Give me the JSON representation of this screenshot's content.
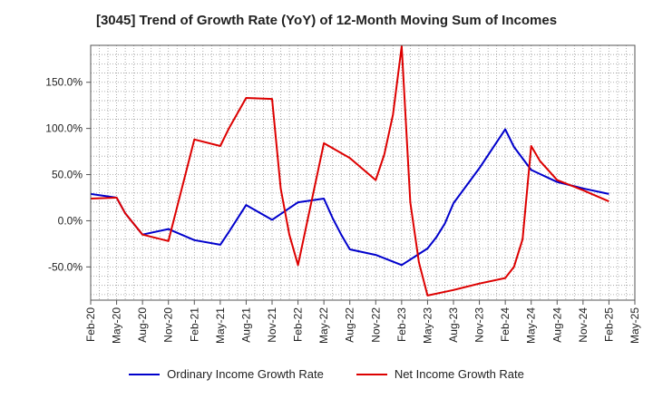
{
  "chart_data": {
    "type": "line",
    "title": "[3045]  Trend of Growth Rate (YoY) of 12-Month Moving Sum of Incomes",
    "xlabel": "",
    "ylabel": "",
    "x_tick_labels": [
      "Feb-20",
      "May-20",
      "Aug-20",
      "Nov-20",
      "Feb-21",
      "May-21",
      "Aug-21",
      "Nov-21",
      "Feb-22",
      "May-22",
      "Aug-22",
      "Nov-22",
      "Feb-23",
      "May-23",
      "Aug-23",
      "Nov-23",
      "Feb-24",
      "May-24",
      "Aug-24",
      "Nov-24",
      "Feb-25",
      "May-25"
    ],
    "y_tick_labels": [
      "-50.0%",
      "0.0%",
      "50.0%",
      "100.0%",
      "150.0%"
    ],
    "y_ticks": [
      -50,
      0,
      50,
      100,
      150
    ],
    "ylim": [
      -86,
      190
    ],
    "x_range_months": [
      "2020-02",
      "2025-05"
    ],
    "grid": true,
    "legend_position": "bottom",
    "series": [
      {
        "name": "Ordinary Income Growth Rate",
        "color": "#0000cc",
        "points": [
          [
            "2020-02",
            29
          ],
          [
            "2020-05",
            25
          ],
          [
            "2020-06",
            8
          ],
          [
            "2020-08",
            -15
          ],
          [
            "2020-11",
            -9
          ],
          [
            "2021-02",
            -21
          ],
          [
            "2021-05",
            -26
          ],
          [
            "2021-06",
            -12
          ],
          [
            "2021-08",
            17
          ],
          [
            "2021-11",
            1
          ],
          [
            "2022-02",
            20
          ],
          [
            "2022-05",
            24
          ],
          [
            "2022-06",
            3
          ],
          [
            "2022-07",
            -15
          ],
          [
            "2022-08",
            -31
          ],
          [
            "2022-11",
            -37
          ],
          [
            "2023-02",
            -48
          ],
          [
            "2023-05",
            -30
          ],
          [
            "2023-06",
            -18
          ],
          [
            "2023-07",
            -3
          ],
          [
            "2023-08",
            19
          ],
          [
            "2023-11",
            57
          ],
          [
            "2024-02",
            99
          ],
          [
            "2024-03",
            80
          ],
          [
            "2024-05",
            55
          ],
          [
            "2024-08",
            42
          ],
          [
            "2024-11",
            35
          ],
          [
            "2025-02",
            29
          ]
        ]
      },
      {
        "name": "Net Income Growth Rate",
        "color": "#dd0000",
        "points": [
          [
            "2020-02",
            24
          ],
          [
            "2020-05",
            25
          ],
          [
            "2020-06",
            8
          ],
          [
            "2020-08",
            -15
          ],
          [
            "2020-11",
            -22
          ],
          [
            "2021-02",
            88
          ],
          [
            "2021-05",
            81
          ],
          [
            "2021-06",
            100
          ],
          [
            "2021-08",
            133
          ],
          [
            "2021-11",
            132
          ],
          [
            "2021-12",
            35
          ],
          [
            "2022-01",
            -15
          ],
          [
            "2022-02",
            -48
          ],
          [
            "2022-05",
            84
          ],
          [
            "2022-08",
            68
          ],
          [
            "2022-11",
            44
          ],
          [
            "2022-12",
            72
          ],
          [
            "2023-01",
            115
          ],
          [
            "2023-02",
            189
          ],
          [
            "2023-03",
            20
          ],
          [
            "2023-04",
            -45
          ],
          [
            "2023-05",
            -81
          ],
          [
            "2023-08",
            -75
          ],
          [
            "2023-11",
            -68
          ],
          [
            "2024-02",
            -62
          ],
          [
            "2024-03",
            -50
          ],
          [
            "2024-04",
            -20
          ],
          [
            "2024-05",
            81
          ],
          [
            "2024-06",
            65
          ],
          [
            "2024-08",
            44
          ],
          [
            "2024-11",
            33
          ],
          [
            "2025-02",
            21
          ]
        ]
      }
    ]
  }
}
